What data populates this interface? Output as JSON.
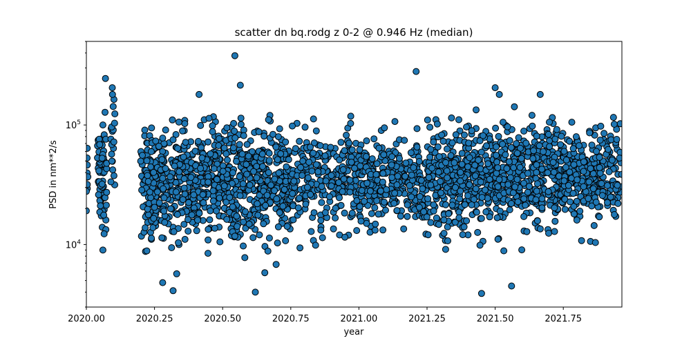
{
  "chart_data": {
    "type": "scatter",
    "title": "scatter dn bq.rodg z 0-2 @ 0.946 Hz (median)",
    "xlabel": "year",
    "ylabel": "PSD in nm**2/s",
    "xlim": [
      2020.0,
      1.965
    ],
    "ylim": [
      3000,
      500000
    ],
    "yscale": "log",
    "grid": false,
    "x_ticks": [
      2020.0,
      2020.25,
      2020.5,
      2020.75,
      2021.0,
      2021.25,
      2021.5,
      2021.75
    ],
    "x_tick_labels": [
      "2020.00",
      "2020.25",
      "2020.50",
      "2020.75",
      "2021.00",
      "2021.25",
      "2021.50",
      "2021.75"
    ],
    "y_ticks": [
      10000,
      100000
    ],
    "marker_color": "#1f77b4",
    "marker_edge_color": "#000000",
    "notable_points": [
      {
        "x": 2020.07,
        "y": 245000
      },
      {
        "x": 2020.095,
        "y": 205000
      },
      {
        "x": 2020.545,
        "y": 380000
      },
      {
        "x": 2020.565,
        "y": 215000
      },
      {
        "x": 2021.21,
        "y": 280000
      },
      {
        "x": 2021.5,
        "y": 205000
      },
      {
        "x": 2020.62,
        "y": 4000
      },
      {
        "x": 2021.45,
        "y": 3900
      },
      {
        "x": 2020.28,
        "y": 4800
      },
      {
        "x": 2021.56,
        "y": 4500
      }
    ],
    "clusters": [
      {
        "x_start": 2020.0,
        "x_end": 2020.005,
        "median": 35000,
        "spread": 0.25,
        "n": 12
      },
      {
        "x_start": 2020.04,
        "x_end": 2020.075,
        "median": 35000,
        "spread": 0.3,
        "n": 70
      },
      {
        "x_start": 2020.09,
        "x_end": 2020.105,
        "median": 60000,
        "spread": 0.3,
        "n": 20
      },
      {
        "x_start": 2020.2,
        "x_end": 2020.5,
        "median": 33000,
        "spread": 0.3,
        "n": 500
      },
      {
        "x_start": 2020.5,
        "x_end": 2020.75,
        "median": 33000,
        "spread": 0.32,
        "n": 420
      },
      {
        "x_start": 2020.75,
        "x_end": 2021.0,
        "median": 35000,
        "spread": 0.26,
        "n": 260
      },
      {
        "x_start": 2021.0,
        "x_end": 2021.25,
        "median": 32000,
        "spread": 0.24,
        "n": 300
      },
      {
        "x_start": 2021.25,
        "x_end": 2021.5,
        "median": 37000,
        "spread": 0.3,
        "n": 380
      },
      {
        "x_start": 2021.5,
        "x_end": 2021.75,
        "median": 38000,
        "spread": 0.28,
        "n": 420
      },
      {
        "x_start": 2021.75,
        "x_end": 2021.965,
        "median": 40000,
        "spread": 0.25,
        "n": 300
      }
    ]
  }
}
